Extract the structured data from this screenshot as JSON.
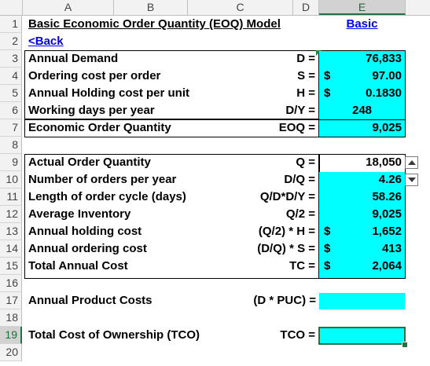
{
  "columns": [
    "A",
    "B",
    "C",
    "D",
    "E"
  ],
  "selected_column": "E",
  "rows": [
    "1",
    "2",
    "3",
    "4",
    "5",
    "6",
    "7",
    "8",
    "9",
    "10",
    "11",
    "12",
    "13",
    "14",
    "15",
    "16",
    "17",
    "18",
    "19",
    "20"
  ],
  "selected_row": "19",
  "title": "Basic Economic Order Quantity (EOQ) Model",
  "mode_link": "Basic",
  "back_link": "<Back",
  "inputs": [
    {
      "label": "Annual Demand",
      "symbol": "D =",
      "dollar": "",
      "value": "76,833"
    },
    {
      "label": "Ordering cost per order",
      "symbol": "S =",
      "dollar": "$",
      "value": "97.00"
    },
    {
      "label": "Annual Holding cost per unit",
      "symbol": "H =",
      "dollar": "$",
      "value": "0.1830"
    },
    {
      "label": "Working days per year",
      "symbol": "D/Y =",
      "dollar": "",
      "value": "248"
    },
    {
      "label": "Economic Order Quantity",
      "symbol": "EOQ =",
      "dollar": "",
      "value": "9,025"
    }
  ],
  "results": [
    {
      "label": "Actual Order Quantity",
      "symbol": "Q =",
      "dollar": "",
      "value": "18,050"
    },
    {
      "label": "Number of orders per year",
      "symbol": "D/Q =",
      "dollar": "",
      "value": "4.26"
    },
    {
      "label": "Length of order cycle (days)",
      "symbol": "Q/D*D/Y =",
      "dollar": "",
      "value": "58.26"
    },
    {
      "label": "Average Inventory",
      "symbol": "Q/2 =",
      "dollar": "",
      "value": "9,025"
    },
    {
      "label": "Annual holding cost",
      "symbol": "(Q/2) * H =",
      "dollar": "$",
      "value": "1,652"
    },
    {
      "label": "Annual ordering cost",
      "symbol": "(D/Q) * S =",
      "dollar": "$",
      "value": "413"
    },
    {
      "label": "Total Annual Cost",
      "symbol": "TC =",
      "dollar": "$",
      "value": "2,064"
    }
  ],
  "product_costs": {
    "label": "Annual Product Costs",
    "symbol": "(D * PUC) =",
    "value": ""
  },
  "tco": {
    "label": "Total Cost of Ownership (TCO)",
    "symbol": "TCO =",
    "value": ""
  },
  "colors": {
    "cyan": "#00ffff",
    "selection_green": "#217346",
    "link": "#0000ee"
  }
}
